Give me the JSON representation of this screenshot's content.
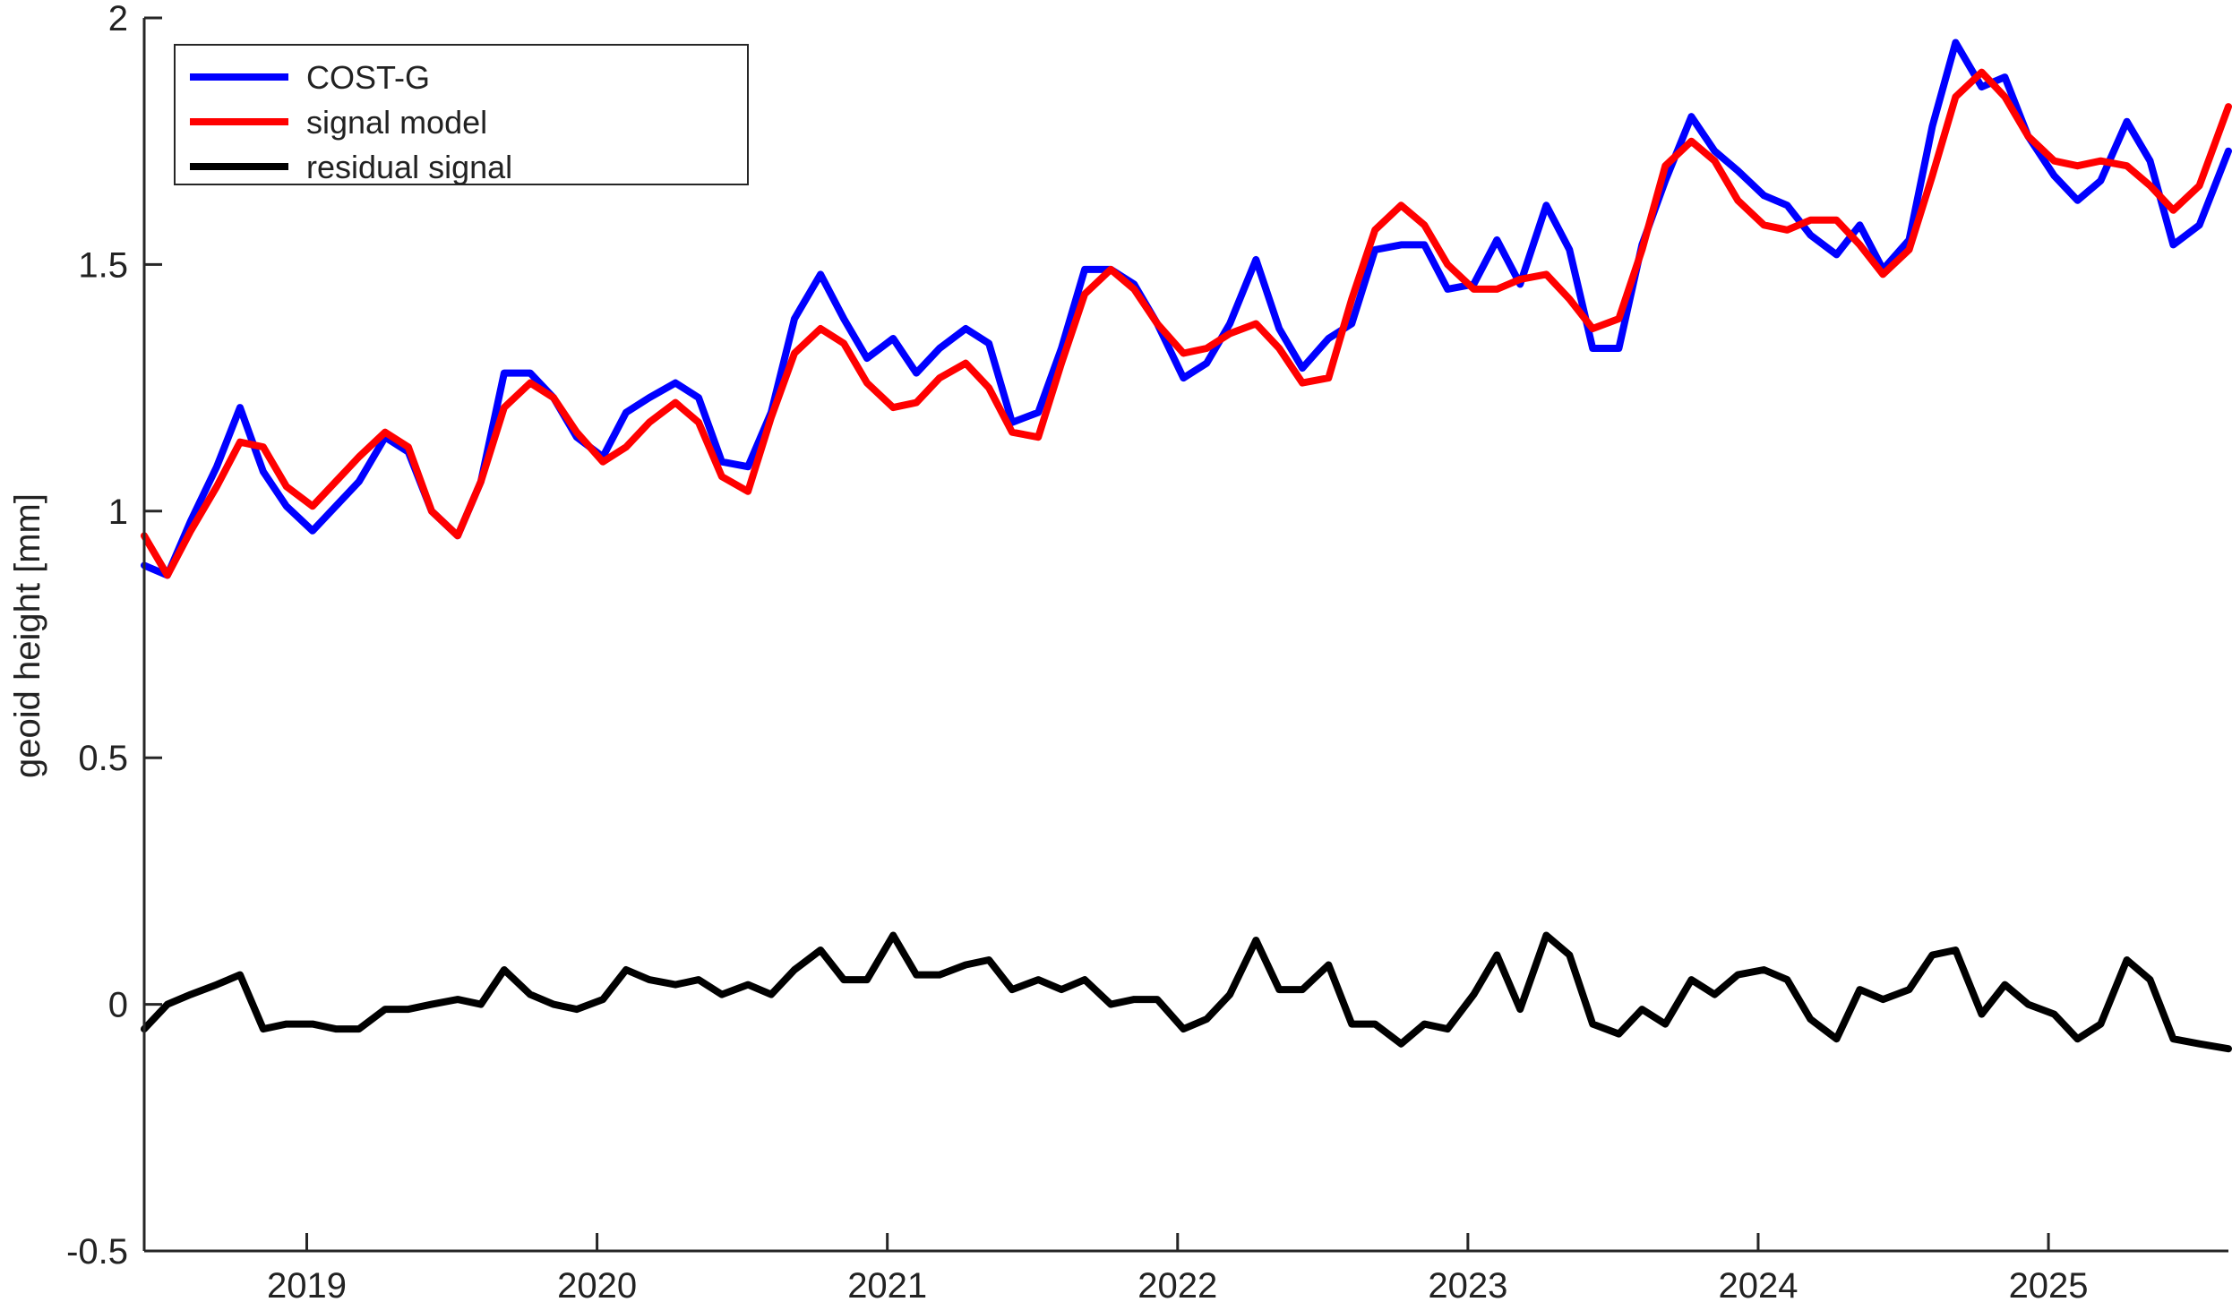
{
  "chart_data": {
    "type": "line",
    "title": "",
    "xlabel": "",
    "ylabel": "geoid height [mm]",
    "xlim": [
      2018.44,
      2025.62
    ],
    "ylim": [
      -0.5,
      2
    ],
    "xticks": [
      2019,
      2020,
      2021,
      2022,
      2023,
      2024,
      2025
    ],
    "xtick_labels": [
      "2019",
      "2020",
      "2021",
      "2022",
      "2023",
      "2024",
      "2025"
    ],
    "yticks": [
      -0.5,
      0,
      0.5,
      1,
      1.5,
      2
    ],
    "ytick_labels": [
      "-0.5",
      "0",
      "0.5",
      "1",
      "1.5",
      "2"
    ],
    "grid": false,
    "legend_position": "top-left",
    "series": [
      {
        "name": "COST-G",
        "color": "#0000ff",
        "x": [
          2018.44,
          2018.52,
          2018.6,
          2018.69,
          2018.77,
          2018.85,
          2018.93,
          2019.02,
          2019.1,
          2019.18,
          2019.27,
          2019.35,
          2019.43,
          2019.52,
          2019.6,
          2019.68,
          2019.77,
          2019.85,
          2019.93,
          2020.02,
          2020.1,
          2020.18,
          2020.27,
          2020.35,
          2020.43,
          2020.52,
          2020.6,
          2020.68,
          2020.77,
          2020.85,
          2020.93,
          2021.02,
          2021.1,
          2021.18,
          2021.27,
          2021.35,
          2021.43,
          2021.52,
          2021.6,
          2021.68,
          2021.77,
          2021.85,
          2021.93,
          2022.02,
          2022.1,
          2022.18,
          2022.27,
          2022.35,
          2022.43,
          2022.52,
          2022.6,
          2022.68,
          2022.77,
          2022.85,
          2022.93,
          2023.02,
          2023.1,
          2023.18,
          2023.27,
          2023.35,
          2023.43,
          2023.52,
          2023.6,
          2023.68,
          2023.77,
          2023.85,
          2023.93,
          2024.02,
          2024.1,
          2024.18,
          2024.27,
          2024.35,
          2024.43,
          2024.52,
          2024.6,
          2024.68,
          2024.77,
          2024.85,
          2024.93,
          2025.02,
          2025.1,
          2025.18,
          2025.27,
          2025.35,
          2025.43,
          2025.52,
          2025.62
        ],
        "values": [
          0.89,
          0.87,
          0.98,
          1.09,
          1.21,
          1.08,
          1.01,
          0.96,
          1.01,
          1.06,
          1.15,
          1.12,
          1.0,
          0.95,
          1.06,
          1.28,
          1.28,
          1.23,
          1.15,
          1.11,
          1.2,
          1.23,
          1.26,
          1.23,
          1.1,
          1.09,
          1.2,
          1.39,
          1.48,
          1.39,
          1.31,
          1.35,
          1.28,
          1.33,
          1.37,
          1.34,
          1.18,
          1.2,
          1.33,
          1.49,
          1.49,
          1.46,
          1.38,
          1.27,
          1.3,
          1.38,
          1.51,
          1.37,
          1.29,
          1.35,
          1.38,
          1.53,
          1.54,
          1.54,
          1.45,
          1.46,
          1.55,
          1.46,
          1.62,
          1.53,
          1.33,
          1.33,
          1.54,
          1.67,
          1.8,
          1.73,
          1.69,
          1.64,
          1.62,
          1.56,
          1.52,
          1.58,
          1.49,
          1.55,
          1.78,
          1.95,
          1.86,
          1.88,
          1.76,
          1.68,
          1.63,
          1.67,
          1.79,
          1.71,
          1.54,
          1.58,
          1.73
        ]
      },
      {
        "name": "signal model",
        "color": "#ff0000",
        "x": [
          2018.44,
          2018.52,
          2018.6,
          2018.69,
          2018.77,
          2018.85,
          2018.93,
          2019.02,
          2019.1,
          2019.18,
          2019.27,
          2019.35,
          2019.43,
          2019.52,
          2019.6,
          2019.68,
          2019.77,
          2019.85,
          2019.93,
          2020.02,
          2020.1,
          2020.18,
          2020.27,
          2020.35,
          2020.43,
          2020.52,
          2020.6,
          2020.68,
          2020.77,
          2020.85,
          2020.93,
          2021.02,
          2021.1,
          2021.18,
          2021.27,
          2021.35,
          2021.43,
          2021.52,
          2021.6,
          2021.68,
          2021.77,
          2021.85,
          2021.93,
          2022.02,
          2022.1,
          2022.18,
          2022.27,
          2022.35,
          2022.43,
          2022.52,
          2022.6,
          2022.68,
          2022.77,
          2022.85,
          2022.93,
          2023.02,
          2023.1,
          2023.18,
          2023.27,
          2023.35,
          2023.43,
          2023.52,
          2023.6,
          2023.68,
          2023.77,
          2023.85,
          2023.93,
          2024.02,
          2024.1,
          2024.18,
          2024.27,
          2024.35,
          2024.43,
          2024.52,
          2024.6,
          2024.68,
          2024.77,
          2024.85,
          2024.93,
          2025.02,
          2025.1,
          2025.18,
          2025.27,
          2025.35,
          2025.43,
          2025.52,
          2025.62
        ],
        "values": [
          0.95,
          0.87,
          0.96,
          1.05,
          1.14,
          1.13,
          1.05,
          1.01,
          1.06,
          1.11,
          1.16,
          1.13,
          1.0,
          0.95,
          1.06,
          1.21,
          1.26,
          1.23,
          1.16,
          1.1,
          1.13,
          1.18,
          1.22,
          1.18,
          1.07,
          1.04,
          1.19,
          1.32,
          1.37,
          1.34,
          1.26,
          1.21,
          1.22,
          1.27,
          1.3,
          1.25,
          1.16,
          1.15,
          1.3,
          1.44,
          1.49,
          1.45,
          1.38,
          1.32,
          1.33,
          1.36,
          1.38,
          1.33,
          1.26,
          1.27,
          1.43,
          1.57,
          1.62,
          1.58,
          1.5,
          1.45,
          1.45,
          1.47,
          1.48,
          1.43,
          1.37,
          1.39,
          1.53,
          1.7,
          1.75,
          1.71,
          1.63,
          1.58,
          1.57,
          1.59,
          1.59,
          1.54,
          1.48,
          1.53,
          1.68,
          1.84,
          1.89,
          1.84,
          1.76,
          1.71,
          1.7,
          1.71,
          1.7,
          1.66,
          1.61,
          1.66,
          1.82
        ]
      },
      {
        "name": "residual signal",
        "color": "#000000",
        "x": [
          2018.44,
          2018.52,
          2018.6,
          2018.69,
          2018.77,
          2018.85,
          2018.93,
          2019.02,
          2019.1,
          2019.18,
          2019.27,
          2019.35,
          2019.43,
          2019.52,
          2019.6,
          2019.68,
          2019.77,
          2019.85,
          2019.93,
          2020.02,
          2020.1,
          2020.18,
          2020.27,
          2020.35,
          2020.43,
          2020.52,
          2020.6,
          2020.68,
          2020.77,
          2020.85,
          2020.93,
          2021.02,
          2021.1,
          2021.18,
          2021.27,
          2021.35,
          2021.43,
          2021.52,
          2021.6,
          2021.68,
          2021.77,
          2021.85,
          2021.93,
          2022.02,
          2022.1,
          2022.18,
          2022.27,
          2022.35,
          2022.43,
          2022.52,
          2022.6,
          2022.68,
          2022.77,
          2022.85,
          2022.93,
          2023.02,
          2023.1,
          2023.18,
          2023.27,
          2023.35,
          2023.43,
          2023.52,
          2023.6,
          2023.68,
          2023.77,
          2023.85,
          2023.93,
          2024.02,
          2024.1,
          2024.18,
          2024.27,
          2024.35,
          2024.43,
          2024.52,
          2024.6,
          2024.68,
          2024.77,
          2024.85,
          2024.93,
          2025.02,
          2025.1,
          2025.18,
          2025.27,
          2025.35,
          2025.43,
          2025.52,
          2025.62
        ],
        "values": [
          -0.05,
          0.0,
          0.02,
          0.04,
          0.06,
          -0.05,
          -0.04,
          -0.04,
          -0.05,
          -0.05,
          -0.01,
          -0.01,
          0.0,
          0.01,
          0.0,
          0.07,
          0.02,
          0.0,
          -0.01,
          0.01,
          0.07,
          0.05,
          0.04,
          0.05,
          0.02,
          0.04,
          0.02,
          0.07,
          0.11,
          0.05,
          0.05,
          0.14,
          0.06,
          0.06,
          0.08,
          0.09,
          0.03,
          0.05,
          0.03,
          0.05,
          0.0,
          0.01,
          0.01,
          -0.05,
          -0.03,
          0.02,
          0.13,
          0.03,
          0.03,
          0.08,
          -0.04,
          -0.04,
          -0.08,
          -0.04,
          -0.05,
          0.02,
          0.1,
          -0.01,
          0.14,
          0.1,
          -0.04,
          -0.06,
          -0.01,
          -0.04,
          0.05,
          0.02,
          0.06,
          0.07,
          0.05,
          -0.03,
          -0.07,
          0.03,
          0.01,
          0.03,
          0.1,
          0.11,
          -0.02,
          0.04,
          0.0,
          -0.02,
          -0.07,
          -0.04,
          0.09,
          0.05,
          -0.07,
          -0.08,
          -0.09
        ]
      }
    ]
  }
}
